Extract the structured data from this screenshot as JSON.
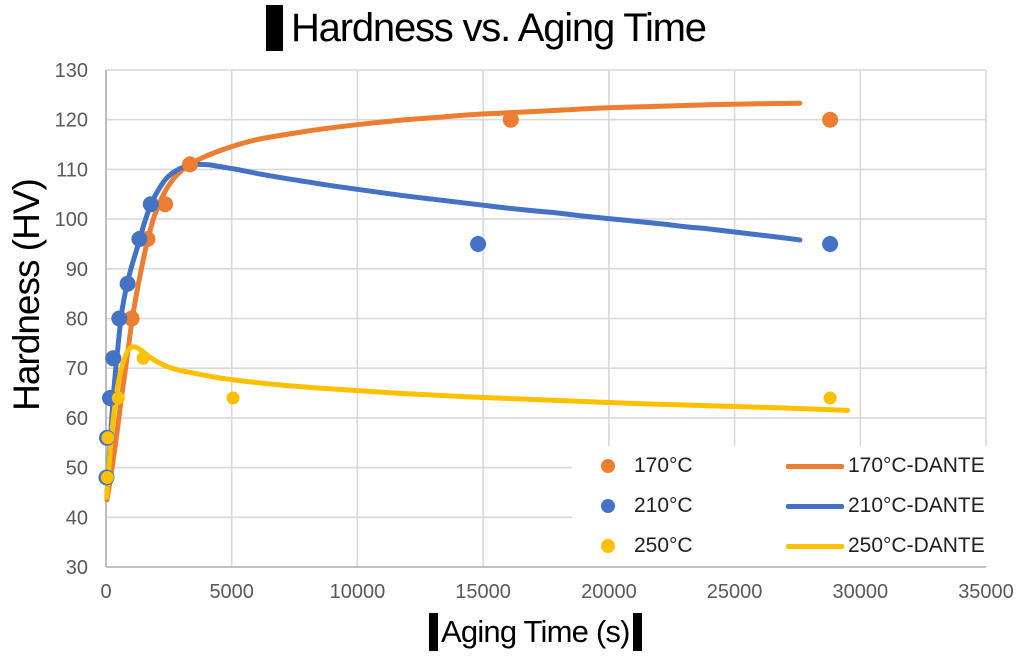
{
  "title": "Hardness vs. Aging Time",
  "colors": {
    "series_170C": "#ED7D31",
    "series_210C": "#4472C4",
    "series_250C": "#FFC000",
    "gridline": "#D9D9D9",
    "axis_line": "#ADADAD",
    "tick_label": "#595959",
    "legend_text": "#1F1F1F",
    "title_text": "#000000",
    "redaction_bar": "#000000",
    "background": "#FFFFFF"
  },
  "legend": {
    "scatter_items": [
      {
        "label": "170°C",
        "color": "#ED7D31"
      },
      {
        "label": "210°C",
        "color": "#4472C4"
      },
      {
        "label": "250°C",
        "color": "#FFC000"
      }
    ],
    "line_items": [
      {
        "label": "170°C-DANTE",
        "color": "#ED7D31"
      },
      {
        "label": "210°C-DANTE",
        "color": "#4472C4"
      },
      {
        "label": "250°C-DANTE",
        "color": "#FFC000"
      }
    ]
  },
  "chart_data": {
    "type": "scatter",
    "title": "Hardness vs. Aging Time",
    "xlabel": "Aging Time (s)",
    "ylabel": "Hardness (HV)",
    "xlim": [
      0,
      35000
    ],
    "ylim": [
      30,
      130
    ],
    "x_ticks": [
      0,
      5000,
      10000,
      15000,
      20000,
      25000,
      30000,
      35000
    ],
    "y_ticks": [
      30,
      40,
      50,
      60,
      70,
      80,
      90,
      100,
      110,
      120,
      130
    ],
    "grid": true,
    "legend_position": "inside-bottom-right",
    "series": [
      {
        "name": "170°C",
        "kind": "scatter",
        "color": "#ED7D31",
        "marker_radius": 8,
        "points": [
          [
            1020,
            80
          ],
          [
            1650,
            96
          ],
          [
            2350,
            103
          ],
          [
            3340,
            111
          ],
          [
            16100,
            120
          ],
          [
            28800,
            120
          ]
        ]
      },
      {
        "name": "210°C",
        "kind": "scatter",
        "color": "#4472C4",
        "marker_radius": 8,
        "points": [
          [
            20,
            48
          ],
          [
            40,
            56
          ],
          [
            160,
            64
          ],
          [
            290,
            72
          ],
          [
            530,
            80
          ],
          [
            860,
            87
          ],
          [
            1330,
            96
          ],
          [
            1780,
            103
          ],
          [
            14800,
            95
          ],
          [
            28800,
            95
          ]
        ]
      },
      {
        "name": "250°C",
        "kind": "scatter",
        "color": "#FFC000",
        "marker_radius": 6.5,
        "points": [
          [
            50,
            48
          ],
          [
            80,
            56
          ],
          [
            490,
            64
          ],
          [
            1480,
            72
          ],
          [
            5050,
            64
          ],
          [
            28800,
            64
          ]
        ]
      },
      {
        "name": "170°C-DANTE",
        "kind": "line",
        "color": "#ED7D31",
        "stroke_width": 5,
        "points": [
          [
            40,
            43.5
          ],
          [
            150,
            47
          ],
          [
            300,
            52
          ],
          [
            450,
            57.5
          ],
          [
            600,
            63.5
          ],
          [
            750,
            69
          ],
          [
            900,
            74.5
          ],
          [
            1030,
            79.5
          ],
          [
            1180,
            84
          ],
          [
            1330,
            88
          ],
          [
            1480,
            91.8
          ],
          [
            1620,
            95
          ],
          [
            1780,
            98.2
          ],
          [
            1950,
            101
          ],
          [
            2150,
            103.5
          ],
          [
            2400,
            106
          ],
          [
            2700,
            108.2
          ],
          [
            3000,
            109.7
          ],
          [
            3400,
            111.2
          ],
          [
            3900,
            112.5
          ],
          [
            4500,
            113.7
          ],
          [
            5200,
            114.9
          ],
          [
            6000,
            116
          ],
          [
            7000,
            116.9
          ],
          [
            8000,
            117.7
          ],
          [
            9000,
            118.4
          ],
          [
            10000,
            119
          ],
          [
            11500,
            119.8
          ],
          [
            13000,
            120.4
          ],
          [
            14500,
            121
          ],
          [
            16000,
            121.4
          ],
          [
            18000,
            121.9
          ],
          [
            20000,
            122.4
          ],
          [
            22000,
            122.7
          ],
          [
            24000,
            123
          ],
          [
            26000,
            123.2
          ],
          [
            27600,
            123.3
          ]
        ]
      },
      {
        "name": "210°C-DANTE",
        "kind": "line",
        "color": "#4472C4",
        "stroke_width": 5,
        "points": [
          [
            30,
            44
          ],
          [
            90,
            49
          ],
          [
            160,
            54.5
          ],
          [
            230,
            60
          ],
          [
            310,
            65.5
          ],
          [
            390,
            70
          ],
          [
            470,
            74
          ],
          [
            560,
            78.5
          ],
          [
            650,
            82
          ],
          [
            760,
            85
          ],
          [
            880,
            87.8
          ],
          [
            1020,
            90.5
          ],
          [
            1180,
            93.2
          ],
          [
            1340,
            96
          ],
          [
            1500,
            98.8
          ],
          [
            1680,
            101.5
          ],
          [
            1880,
            104
          ],
          [
            2100,
            106
          ],
          [
            2350,
            107.9
          ],
          [
            2650,
            109.3
          ],
          [
            3000,
            110.3
          ],
          [
            3350,
            110.8
          ],
          [
            3700,
            111
          ],
          [
            4100,
            110.9
          ],
          [
            4600,
            110.5
          ],
          [
            5200,
            110
          ],
          [
            6000,
            109.2
          ],
          [
            7000,
            108.3
          ],
          [
            8000,
            107.5
          ],
          [
            9000,
            106.7
          ],
          [
            10000,
            106
          ],
          [
            11000,
            105.3
          ],
          [
            12000,
            104.6
          ],
          [
            13000,
            104
          ],
          [
            14000,
            103.4
          ],
          [
            15000,
            102.8
          ],
          [
            16000,
            102.2
          ],
          [
            17000,
            101.7
          ],
          [
            18000,
            101.2
          ],
          [
            19000,
            100.6
          ],
          [
            20000,
            100.1
          ],
          [
            21000,
            99.6
          ],
          [
            22000,
            99.1
          ],
          [
            23000,
            98.5
          ],
          [
            24000,
            98
          ],
          [
            25000,
            97.4
          ],
          [
            26000,
            96.8
          ],
          [
            27000,
            96.2
          ],
          [
            27600,
            95.8
          ]
        ]
      },
      {
        "name": "250°C-DANTE",
        "kind": "line",
        "color": "#FFC000",
        "stroke_width": 5,
        "points": [
          [
            30,
            44
          ],
          [
            90,
            48.5
          ],
          [
            160,
            53
          ],
          [
            240,
            57.5
          ],
          [
            330,
            61.5
          ],
          [
            430,
            65.3
          ],
          [
            540,
            68.3
          ],
          [
            660,
            70.8
          ],
          [
            790,
            72.7
          ],
          [
            930,
            73.9
          ],
          [
            1080,
            74.3
          ],
          [
            1250,
            74.1
          ],
          [
            1450,
            73.4
          ],
          [
            1700,
            72.4
          ],
          [
            2000,
            71.4
          ],
          [
            2400,
            70.4
          ],
          [
            2900,
            69.6
          ],
          [
            3500,
            69
          ],
          [
            4200,
            68.3
          ],
          [
            5000,
            67.7
          ],
          [
            6000,
            67.1
          ],
          [
            7200,
            66.5
          ],
          [
            8500,
            66
          ],
          [
            10000,
            65.5
          ],
          [
            11500,
            65
          ],
          [
            13000,
            64.6
          ],
          [
            15000,
            64.1
          ],
          [
            17000,
            63.7
          ],
          [
            19000,
            63.3
          ],
          [
            21000,
            62.9
          ],
          [
            23000,
            62.6
          ],
          [
            25000,
            62.3
          ],
          [
            27000,
            62
          ],
          [
            29500,
            61.5
          ]
        ]
      }
    ]
  }
}
